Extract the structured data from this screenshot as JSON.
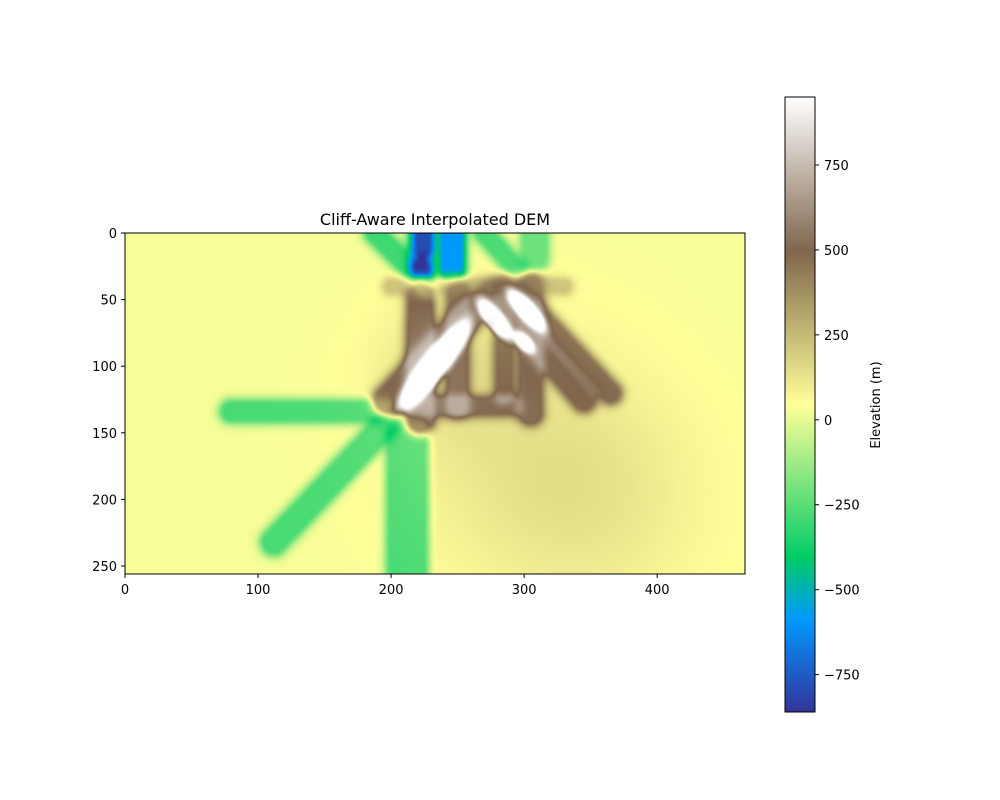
{
  "chart_data": {
    "type": "heatmap",
    "title": "Cliff-Aware Interpolated DEM",
    "xlabel": "",
    "ylabel": "",
    "grid": false,
    "xlim": [
      0,
      466
    ],
    "ylim": [
      256,
      0
    ],
    "xticks": [
      "0",
      "100",
      "200",
      "300",
      "400"
    ],
    "xtick_values": [
      0,
      100,
      200,
      300,
      400
    ],
    "yticks": [
      "0",
      "50",
      "100",
      "150",
      "200",
      "250"
    ],
    "ytick_values": [
      0,
      50,
      100,
      150,
      200,
      250
    ],
    "colorbar": {
      "label": "Elevation (m)",
      "colormap": "terrain",
      "vmin": -860,
      "vmax": 950,
      "ticks": [
        "−750",
        "−500",
        "−250",
        "0",
        "250",
        "500",
        "750"
      ],
      "tick_values": [
        -750,
        -500,
        -250,
        0,
        250,
        500,
        750
      ]
    },
    "background_elevation": 30,
    "features": [
      {
        "kind": "streak",
        "value": -280,
        "x1": 80,
        "y1": 134,
        "x2": 195,
        "y2": 134,
        "width": 10
      },
      {
        "kind": "streak",
        "value": -280,
        "x1": 195,
        "y1": 145,
        "x2": 112,
        "y2": 232,
        "width": 13
      },
      {
        "kind": "streak",
        "value": -290,
        "x1": 212,
        "y1": 150,
        "x2": 212,
        "y2": 252,
        "width": 24
      },
      {
        "kind": "streak",
        "value": -300,
        "x1": 188,
        "y1": 0,
        "x2": 228,
        "y2": 40,
        "width": 9
      },
      {
        "kind": "streak",
        "value": -280,
        "x1": 270,
        "y1": 0,
        "x2": 295,
        "y2": 28,
        "width": 8
      },
      {
        "kind": "streak",
        "value": -220,
        "x1": 308,
        "y1": 0,
        "x2": 308,
        "y2": 18,
        "width": 14
      },
      {
        "kind": "streak",
        "value": -280,
        "x1": 223,
        "y1": 0,
        "x2": 223,
        "y2": 28,
        "width": 14
      },
      {
        "kind": "streak",
        "value": -640,
        "x1": 224,
        "y1": 0,
        "x2": 224,
        "y2": 12,
        "width": 7
      },
      {
        "kind": "streak",
        "value": -640,
        "x1": 223,
        "y1": 26,
        "x2": 223,
        "y2": 36,
        "width": 7
      },
      {
        "kind": "streak",
        "value": -600,
        "x1": 246,
        "y1": 0,
        "x2": 246,
        "y2": 28,
        "width": 12
      },
      {
        "kind": "streak",
        "value": 460,
        "x1": 222,
        "y1": 48,
        "x2": 222,
        "y2": 140,
        "width": 14
      },
      {
        "kind": "streak",
        "value": 400,
        "x1": 250,
        "y1": 45,
        "x2": 250,
        "y2": 130,
        "width": 10
      },
      {
        "kind": "streak",
        "value": 420,
        "x1": 305,
        "y1": 40,
        "x2": 305,
        "y2": 135,
        "width": 12
      },
      {
        "kind": "streak",
        "value": 380,
        "x1": 285,
        "y1": 40,
        "x2": 285,
        "y2": 120,
        "width": 8
      },
      {
        "kind": "streak",
        "value": 430,
        "x1": 198,
        "y1": 125,
        "x2": 265,
        "y2": 55,
        "width": 16
      },
      {
        "kind": "streak",
        "value": 420,
        "x1": 275,
        "y1": 45,
        "x2": 345,
        "y2": 125,
        "width": 12
      },
      {
        "kind": "streak",
        "value": 420,
        "x1": 295,
        "y1": 45,
        "x2": 365,
        "y2": 120,
        "width": 10
      },
      {
        "kind": "streak",
        "value": 400,
        "x1": 218,
        "y1": 130,
        "x2": 290,
        "y2": 130,
        "width": 8
      },
      {
        "kind": "streak",
        "value": 200,
        "x1": 200,
        "y1": 40,
        "x2": 330,
        "y2": 40,
        "width": 5
      },
      {
        "kind": "ellipse",
        "value": 820,
        "cx": 232,
        "cy": 100,
        "rx": 30,
        "ry": 7,
        "angle": -52
      },
      {
        "kind": "ellipse",
        "value": 740,
        "cx": 278,
        "cy": 65,
        "rx": 14,
        "ry": 5,
        "angle": 50
      },
      {
        "kind": "ellipse",
        "value": 760,
        "cx": 302,
        "cy": 58,
        "rx": 15,
        "ry": 5,
        "angle": 48
      },
      {
        "kind": "ellipse",
        "value": 620,
        "cx": 300,
        "cy": 82,
        "rx": 8,
        "ry": 4,
        "angle": 45
      },
      {
        "kind": "blob",
        "value": 120,
        "cx": 240,
        "cy": 100,
        "r": 45
      },
      {
        "kind": "blob",
        "value": 110,
        "cx": 350,
        "cy": 200,
        "r": 90
      },
      {
        "kind": "blob",
        "value": 90,
        "cx": 280,
        "cy": 150,
        "r": 100
      }
    ]
  }
}
